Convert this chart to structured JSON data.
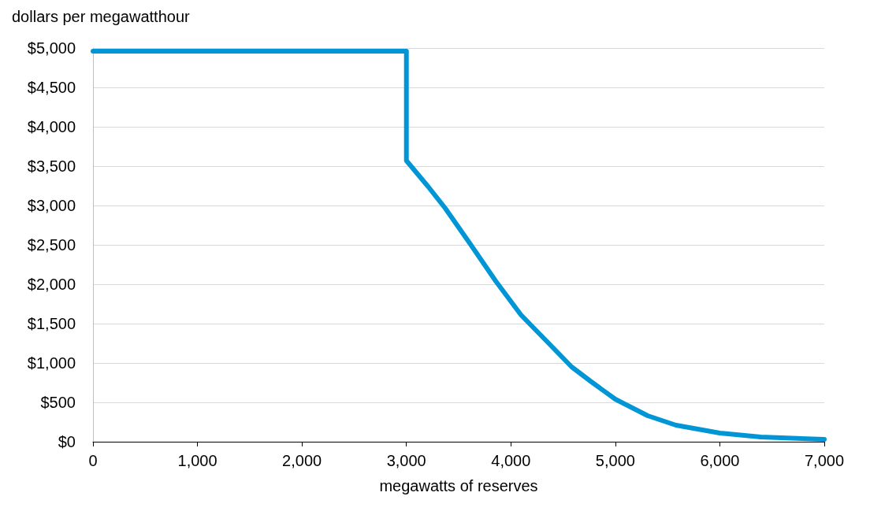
{
  "chart_data": {
    "type": "line",
    "ylabel": "dollars per megawatthour",
    "xlabel": "megawatts of reserves",
    "series": [
      {
        "color": "#0096d6",
        "x": [
          0,
          3000,
          3000,
          3208,
          3369,
          3612,
          3855,
          4097,
          4340,
          4582,
          4771,
          5000,
          5310,
          5580,
          6000,
          6391,
          7000
        ],
        "values": [
          4960,
          4960,
          3570,
          3240,
          2970,
          2510,
          2040,
          1610,
          1280,
          950,
          760,
          540,
          330,
          210,
          110,
          60,
          30
        ]
      }
    ],
    "xlim": [
      0,
      7000
    ],
    "xticks": [
      {
        "value": 0,
        "label": "0"
      },
      {
        "value": 1000,
        "label": "1,000"
      },
      {
        "value": 2000,
        "label": "2,000"
      },
      {
        "value": 3000,
        "label": "3,000"
      },
      {
        "value": 4000,
        "label": "4,000"
      },
      {
        "value": 5000,
        "label": "5,000"
      },
      {
        "value": 6000,
        "label": "6,000"
      },
      {
        "value": 7000,
        "label": "7,000"
      }
    ],
    "ylim": [
      0,
      5000
    ],
    "yticks": [
      {
        "value": 0,
        "label": "$0"
      },
      {
        "value": 500,
        "label": "$500"
      },
      {
        "value": 1000,
        "label": "$1,000"
      },
      {
        "value": 1500,
        "label": "$1,500"
      },
      {
        "value": 2000,
        "label": "$2,000"
      },
      {
        "value": 2500,
        "label": "$2,500"
      },
      {
        "value": 3000,
        "label": "$3,000"
      },
      {
        "value": 3500,
        "label": "$3,500"
      },
      {
        "value": 4000,
        "label": "$4,000"
      },
      {
        "value": 4500,
        "label": "$4,500"
      },
      {
        "value": 5000,
        "label": "$5,000"
      }
    ],
    "grid": "y",
    "marker": "none",
    "line_style": "solid"
  }
}
